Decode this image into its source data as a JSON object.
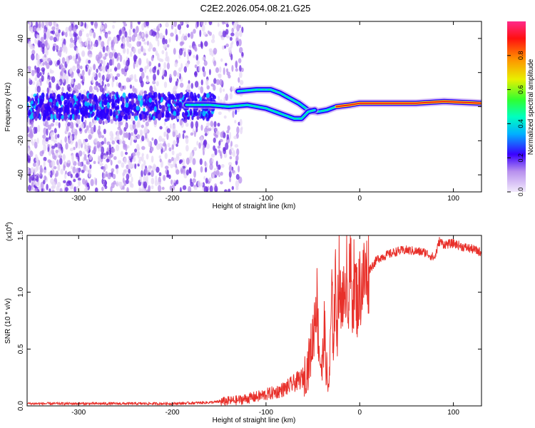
{
  "figure": {
    "title": "C2E2.2026.054.08.21.G25"
  },
  "colors": {
    "snr_line": "#e8302a",
    "ridge_core": "#ff1a1a",
    "background": "#ffffff",
    "axis": "#000000"
  },
  "colormap": [
    "#e6d8f6",
    "#b890ee",
    "#6a2ae0",
    "#2a00ff",
    "#00c8ff",
    "#00ff80",
    "#f0f000",
    "#ff8000",
    "#ff0000",
    "#ff1a80"
  ],
  "chart_data": [
    {
      "type": "heatmap",
      "name": "spectrogram",
      "xlabel": "Height of straight line (km)",
      "ylabel": "Frequency (Hz)",
      "xlim": [
        -355,
        130
      ],
      "ylim": [
        -50,
        50
      ],
      "xticks": [
        -300,
        -200,
        -100,
        0,
        100
      ],
      "xtick_labels": [
        "-300",
        "-200",
        "-100",
        "0",
        "100"
      ],
      "yticks": [
        -40,
        -20,
        0,
        20,
        40
      ],
      "ytick_labels": [
        "-40",
        "-20",
        "0",
        "20",
        "40"
      ],
      "colorbar": {
        "label": "Normalized spectral amplitude",
        "range": [
          0.0,
          1.0
        ],
        "ticks": [
          0.0,
          0.2,
          0.4,
          0.6,
          0.8
        ],
        "tick_labels": [
          "0.0",
          "0.2",
          "0.4",
          "0.6",
          "0.8"
        ]
      },
      "ridges": [
        {
          "name": "upper-branch",
          "points": [
            [
              -130,
              9
            ],
            [
              -110,
              10
            ],
            [
              -95,
              10
            ],
            [
              -85,
              8
            ],
            [
              -75,
              5
            ],
            [
              -65,
              2
            ],
            [
              -55,
              -2
            ],
            [
              -45,
              -3
            ],
            [
              -35,
              -2
            ],
            [
              -25,
              0
            ],
            [
              -10,
              1
            ],
            [
              0,
              2
            ],
            [
              30,
              2
            ],
            [
              60,
              2
            ],
            [
              90,
              3
            ],
            [
              130,
              2
            ]
          ]
        },
        {
          "name": "lower-branch",
          "points": [
            [
              -185,
              1
            ],
            [
              -160,
              1
            ],
            [
              -140,
              0
            ],
            [
              -120,
              1
            ],
            [
              -100,
              -1
            ],
            [
              -90,
              -3
            ],
            [
              -80,
              -5
            ],
            [
              -70,
              -7
            ],
            [
              -62,
              -7
            ],
            [
              -55,
              -3
            ],
            [
              -48,
              -2
            ]
          ]
        }
      ]
    },
    {
      "type": "line",
      "name": "snr",
      "xlabel": "Height of straight line (km)",
      "ylabel": "SNR (10 * v/v)",
      "yscale_label": "(x10",
      "yscale_exponent": "4",
      "yscale_suffix": ")",
      "xlim": [
        -355,
        130
      ],
      "ylim": [
        0.0,
        1.5
      ],
      "xticks": [
        -300,
        -200,
        -100,
        0,
        100
      ],
      "xtick_labels": [
        "-300",
        "-200",
        "-100",
        "0",
        "100"
      ],
      "yticks": [
        0.0,
        0.5,
        1.0,
        1.5
      ],
      "ytick_labels": [
        "0.0",
        "0.5",
        "1.0",
        "1.5"
      ],
      "x": [
        -355,
        -300,
        -250,
        -200,
        -160,
        -130,
        -110,
        -100,
        -90,
        -80,
        -70,
        -60,
        -55,
        -50,
        -46,
        -44,
        -42,
        -40,
        -38,
        -36,
        -34,
        -32,
        -30,
        -28,
        -26,
        -24,
        -22,
        -20,
        -18,
        -16,
        -14,
        -12,
        -10,
        -8,
        -6,
        -4,
        -2,
        0,
        10,
        20,
        30,
        40,
        50,
        60,
        70,
        80,
        85,
        90,
        100,
        110,
        120,
        130
      ],
      "values": [
        0.02,
        0.02,
        0.02,
        0.02,
        0.03,
        0.05,
        0.08,
        0.1,
        0.12,
        0.15,
        0.2,
        0.25,
        0.35,
        0.6,
        1.0,
        0.6,
        0.4,
        0.3,
        0.7,
        0.4,
        0.15,
        0.3,
        0.95,
        0.6,
        1.05,
        0.7,
        1.25,
        0.8,
        1.15,
        0.7,
        1.37,
        0.9,
        1.2,
        0.95,
        1.1,
        1.0,
        0.9,
        1.05,
        1.2,
        1.3,
        1.33,
        1.36,
        1.37,
        1.36,
        1.35,
        1.3,
        1.45,
        1.42,
        1.43,
        1.4,
        1.38,
        1.35
      ]
    }
  ]
}
